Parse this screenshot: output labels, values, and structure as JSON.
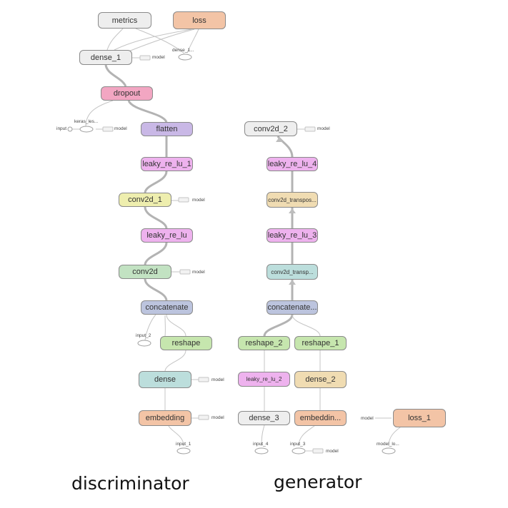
{
  "colors": {
    "gray": "#eeeeee",
    "orange": "#f3c4a6",
    "pink": "#f2a6c2",
    "purple": "#c9b8e6",
    "magenta": "#eeb2ee",
    "yellow": "#eeeeae",
    "green": "#c2e2c2",
    "teal": "#bcdedc",
    "blue": "#bcc4de",
    "lightgreen": "#c6e6ae",
    "tan": "#f0dcb2"
  },
  "captions": {
    "discriminator": "discriminator",
    "generator": "generator"
  },
  "nodes": [
    {
      "id": "metrics",
      "label": "metrics",
      "color": "gray"
    },
    {
      "id": "loss",
      "label": "loss",
      "color": "orange"
    },
    {
      "id": "dense_1",
      "label": "dense_1",
      "color": "gray"
    },
    {
      "id": "dropout",
      "label": "dropout",
      "color": "pink"
    },
    {
      "id": "flatten",
      "label": "flatten",
      "color": "purple"
    },
    {
      "id": "leaky_re_lu_1",
      "label": "leaky_re_lu_1",
      "color": "magenta"
    },
    {
      "id": "conv2d_1",
      "label": "conv2d_1",
      "color": "yellow"
    },
    {
      "id": "leaky_re_lu",
      "label": "leaky_re_lu",
      "color": "magenta"
    },
    {
      "id": "conv2d",
      "label": "conv2d",
      "color": "green"
    },
    {
      "id": "concatenate",
      "label": "concatenate",
      "color": "blue"
    },
    {
      "id": "reshape",
      "label": "reshape",
      "color": "lightgreen"
    },
    {
      "id": "dense",
      "label": "dense",
      "color": "teal"
    },
    {
      "id": "embedding",
      "label": "embedding",
      "color": "orange"
    },
    {
      "id": "conv2d_2",
      "label": "conv2d_2",
      "color": "gray"
    },
    {
      "id": "leaky_re_lu_4",
      "label": "leaky_re_lu_4",
      "color": "magenta"
    },
    {
      "id": "conv2d_transpose_1",
      "label": "conv2d_transpos...",
      "color": "tan"
    },
    {
      "id": "leaky_re_lu_3",
      "label": "leaky_re_lu_3",
      "color": "magenta"
    },
    {
      "id": "conv2d_transpose",
      "label": "conv2d_transp...",
      "color": "teal"
    },
    {
      "id": "concatenate_1",
      "label": "concatenate...",
      "color": "blue"
    },
    {
      "id": "reshape_2",
      "label": "reshape_2",
      "color": "lightgreen"
    },
    {
      "id": "reshape_1",
      "label": "reshape_1",
      "color": "lightgreen"
    },
    {
      "id": "leaky_re_lu_2",
      "label": "leaky_re_lu_2",
      "color": "magenta"
    },
    {
      "id": "dense_2",
      "label": "dense_2",
      "color": "tan"
    },
    {
      "id": "dense_3",
      "label": "dense_3",
      "color": "gray"
    },
    {
      "id": "embedding_1",
      "label": "embeddin...",
      "color": "orange"
    },
    {
      "id": "loss_1",
      "label": "loss_1",
      "color": "orange"
    }
  ],
  "aux_labels": {
    "model": "model",
    "input": "input",
    "keras_learning_phase": "keras_les...",
    "dense_1_small": "dense_1...",
    "input_1": "input_1",
    "input_2": "input_2",
    "input_3": "input_3",
    "input_4": "input_4",
    "model_loss": "model_lo..."
  }
}
